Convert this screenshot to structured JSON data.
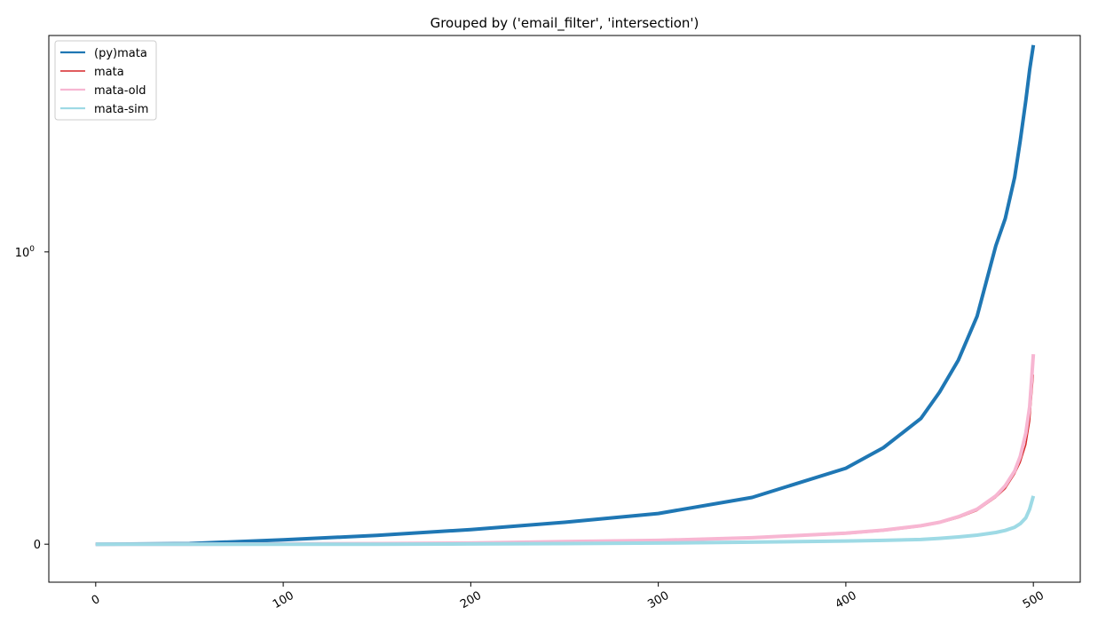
{
  "chart_data": {
    "type": "line",
    "title": "Grouped by ('email_filter', 'intersection')",
    "xlabel": "",
    "ylabel": "",
    "xlim": [
      -25,
      525
    ],
    "yscale": "symlog",
    "ylim": [
      -0.13,
      5.5
    ],
    "grid": false,
    "legend_position": "top-left",
    "x_ticks": [
      {
        "value": 0,
        "label": "0"
      },
      {
        "value": 100,
        "label": "100"
      },
      {
        "value": 200,
        "label": "200"
      },
      {
        "value": 300,
        "label": "300"
      },
      {
        "value": 400,
        "label": "400"
      },
      {
        "value": 500,
        "label": "500"
      }
    ],
    "y_ticks": [
      {
        "value": 0,
        "label": "0"
      },
      {
        "value": 1,
        "label": "10",
        "sup": "0"
      }
    ],
    "x": [
      0,
      50,
      100,
      150,
      200,
      250,
      300,
      350,
      400,
      420,
      440,
      450,
      460,
      470,
      480,
      485,
      490,
      493,
      496,
      498,
      500
    ],
    "series": [
      {
        "name": "(py)mata",
        "color": "#1f77b4",
        "line_width": 4,
        "values": [
          0.0,
          0.002,
          0.015,
          0.03,
          0.05,
          0.075,
          0.105,
          0.16,
          0.26,
          0.33,
          0.43,
          0.52,
          0.63,
          0.78,
          1.05,
          1.3,
          1.8,
          2.4,
          3.3,
          4.2,
          5.1
        ]
      },
      {
        "name": "mata",
        "color": "#d62728",
        "line_width": 1.5,
        "values": [
          0.0,
          0.0,
          0.001,
          0.002,
          0.004,
          0.008,
          0.012,
          0.02,
          0.035,
          0.045,
          0.06,
          0.072,
          0.09,
          0.115,
          0.16,
          0.19,
          0.24,
          0.28,
          0.34,
          0.42,
          0.58
        ]
      },
      {
        "name": "mata-old",
        "color": "#f7b6d2",
        "line_width": 4,
        "values": [
          0.0,
          0.0,
          0.001,
          0.002,
          0.004,
          0.009,
          0.013,
          0.022,
          0.038,
          0.048,
          0.063,
          0.075,
          0.094,
          0.12,
          0.165,
          0.2,
          0.25,
          0.3,
          0.38,
          0.47,
          0.65
        ]
      },
      {
        "name": "mata-sim",
        "color": "#9edae5",
        "line_width": 4,
        "values": [
          0.0,
          0.0,
          0.0,
          0.0,
          0.001,
          0.002,
          0.004,
          0.007,
          0.011,
          0.013,
          0.016,
          0.02,
          0.025,
          0.031,
          0.04,
          0.047,
          0.058,
          0.07,
          0.09,
          0.12,
          0.165
        ]
      }
    ]
  }
}
